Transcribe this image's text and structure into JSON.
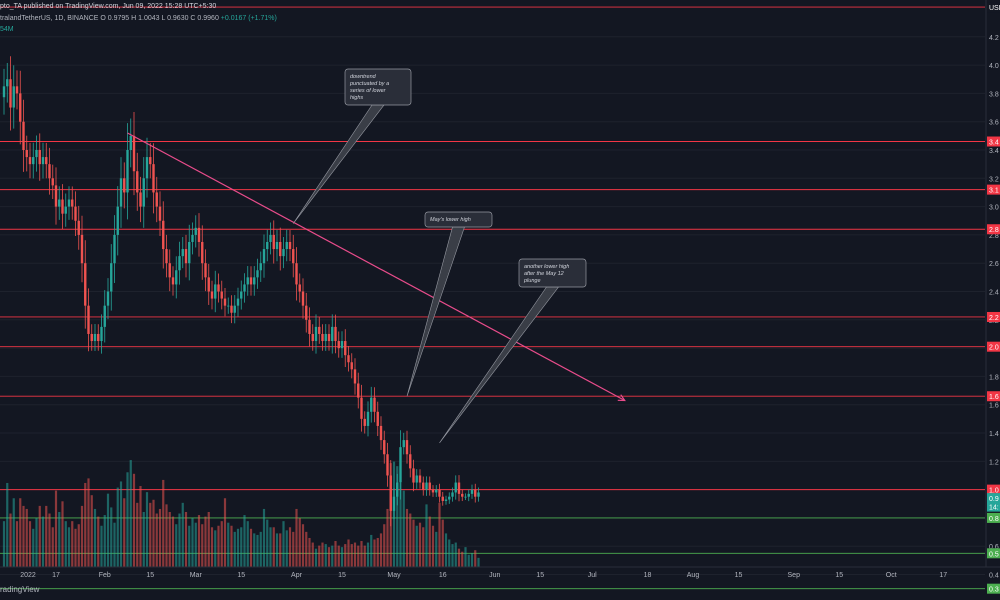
{
  "header": {
    "published": "pto_TA published on TradingView.com, Jun 09, 2022 15:28 UTC+5:30"
  },
  "symbol": {
    "name": "tralandTetherUS, 1D, BINANCE",
    "ohlc": "O 0.9795  H 1.0043  L 0.9630  C 0.9960",
    "change": "+0.0167 (+1.71%)"
  },
  "volume_label": "54M",
  "footer": {
    "brand": "radingView"
  },
  "colors": {
    "background": "#131722",
    "bull": "#26a69a",
    "bear": "#ef5350",
    "trendline": "#e84c8b",
    "resistance": "#f23645",
    "support": "#4caf50",
    "axis_text": "#b2b5be"
  },
  "chart_data": {
    "type": "candlestick",
    "title": "",
    "xlabel": "",
    "ylabel": "",
    "ylim": [
      0.22,
      4.46
    ],
    "x_ticks": [
      "2022",
      "17",
      "Feb",
      "15",
      "Mar",
      "15",
      "Apr",
      "15",
      "May",
      "16",
      "Jun",
      "15",
      "Jul",
      "18",
      "Aug",
      "15",
      "Sep",
      "15",
      "Oct",
      "17"
    ],
    "y_ticks": [
      "4.2",
      "4.0",
      "3.8",
      "3.6",
      "3.4",
      "3.2",
      "3.0",
      "2.8",
      "2.6",
      "2.4",
      "2.2",
      "2.0",
      "1.8",
      "1.6",
      "1.4",
      "1.2",
      "1.0",
      "0.8",
      "0.6",
      "0.4"
    ],
    "price_tags": [
      {
        "label": "USDT",
        "color": "#131722"
      },
      {
        "label": "3.4",
        "color": "#f23645"
      },
      {
        "label": "3.1",
        "color": "#f23645"
      },
      {
        "label": "2.8",
        "color": "#f23645"
      },
      {
        "label": "2.2",
        "color": "#f23645"
      },
      {
        "label": "2.0",
        "color": "#f23645"
      },
      {
        "label": "1.6",
        "color": "#f23645"
      },
      {
        "label": "1.0",
        "color": "#f23645"
      },
      {
        "label": "0.9",
        "color": "#26a69a"
      },
      {
        "label": "14:",
        "color": "#26a69a"
      },
      {
        "label": "0.8",
        "color": "#4caf50"
      },
      {
        "label": "0.5",
        "color": "#4caf50"
      },
      {
        "label": "0.3",
        "color": "#4caf50"
      }
    ],
    "resistance_levels": [
      4.41,
      3.46,
      3.12,
      2.84,
      2.22,
      2.01,
      1.66,
      1.0
    ],
    "support_levels": [
      0.8,
      0.55,
      0.3
    ],
    "trendline": {
      "from": [
        "2022-02-08",
        3.52
      ],
      "to": [
        "2022-07-11",
        1.63
      ]
    },
    "annotations": [
      {
        "text": [
          "downtrend",
          "punctuated by a",
          "series of lower",
          "highs"
        ],
        "arrow_to": [
          "2022-03-31",
          2.88
        ]
      },
      {
        "text": [
          "May's lower high"
        ],
        "arrow_to": [
          "2022-05-05",
          1.66
        ]
      },
      {
        "text": [
          "another lower high",
          "after the May 12",
          "plunge"
        ],
        "arrow_to": [
          "2022-05-15",
          1.33
        ]
      }
    ],
    "start_date": "2022-01-01",
    "closes": [
      3.85,
      3.9,
      3.7,
      3.85,
      3.8,
      3.6,
      3.4,
      3.35,
      3.3,
      3.35,
      3.4,
      3.3,
      3.35,
      3.3,
      3.2,
      3.15,
      3.0,
      3.05,
      2.95,
      3.0,
      3.05,
      3.0,
      2.9,
      2.8,
      2.6,
      2.3,
      2.1,
      2.05,
      2.1,
      2.05,
      2.15,
      2.3,
      2.4,
      2.6,
      2.8,
      3.0,
      3.2,
      3.1,
      3.4,
      3.5,
      3.25,
      3.1,
      3.0,
      3.2,
      3.35,
      3.3,
      3.1,
      3.0,
      2.9,
      2.7,
      2.6,
      2.5,
      2.45,
      2.55,
      2.65,
      2.7,
      2.6,
      2.75,
      2.8,
      2.85,
      2.75,
      2.6,
      2.5,
      2.4,
      2.35,
      2.45,
      2.4,
      2.35,
      2.3,
      2.3,
      2.25,
      2.3,
      2.35,
      2.4,
      2.45,
      2.5,
      2.45,
      2.5,
      2.55,
      2.6,
      2.7,
      2.75,
      2.8,
      2.7,
      2.75,
      2.65,
      2.7,
      2.75,
      2.7,
      2.6,
      2.45,
      2.4,
      2.3,
      2.2,
      2.1,
      2.05,
      2.15,
      2.1,
      2.05,
      2.1,
      2.05,
      2.15,
      2.05,
      2.0,
      2.05,
      1.95,
      1.9,
      1.85,
      1.75,
      1.65,
      1.5,
      1.45,
      1.55,
      1.65,
      1.55,
      1.45,
      1.35,
      1.25,
      1.1,
      0.85,
      0.95,
      1.05,
      1.3,
      1.35,
      1.25,
      1.15,
      1.05,
      1.1,
      1.05,
      1.0,
      1.05,
      1.0,
      0.98,
      1.0,
      0.95,
      0.92,
      0.93,
      0.95,
      0.98,
      1.05,
      0.97,
      0.95,
      0.95,
      0.97,
      1.0,
      0.95,
      0.98
    ],
    "volume": [
      3.0,
      5.5,
      3.5,
      4.5,
      3.0,
      4.5,
      4.0,
      3.8,
      3.0,
      2.5,
      3.2,
      4.0,
      3.3,
      4.0,
      3.5,
      2.6,
      5.0,
      3.6,
      4.3,
      3.0,
      2.6,
      3.0,
      2.5,
      2.8,
      4.0,
      5.5,
      5.8,
      4.7,
      3.8,
      3.3,
      2.7,
      3.4,
      4.8,
      3.9,
      2.9,
      5.2,
      5.6,
      4.5,
      6.2,
      7.0,
      6.1,
      4.2,
      5.3,
      3.6,
      4.9,
      4.2,
      4.4,
      3.5,
      3.8,
      5.7,
      4.1,
      3.6,
      3.3,
      2.8,
      3.5,
      4.2,
      3.6,
      2.7,
      3.2,
      2.9,
      3.4,
      2.8,
      3.3,
      3.6,
      2.6,
      2.4,
      2.7,
      3.0,
      4.5,
      2.9,
      2.7,
      2.3,
      2.5,
      2.6,
      3.4,
      3.0,
      2.5,
      2.2,
      2.1,
      2.3,
      3.8,
      3.1,
      2.6,
      2.6,
      2.2,
      2.2,
      3.0,
      2.4,
      2.6,
      2.3,
      3.8,
      3.2,
      2.8,
      2.3,
      1.9,
      1.6,
      1.2,
      1.4,
      1.6,
      1.5,
      1.3,
      1.4,
      1.7,
      1.4,
      1.3,
      1.5,
      1.8,
      1.5,
      1.6,
      1.4,
      1.7,
      1.4,
      1.6,
      2.1,
      1.8,
      1.9,
      2.2,
      2.8,
      3.8,
      6.8,
      6.9,
      6.6,
      5.5,
      5.0,
      3.8,
      3.5,
      3.1,
      2.7,
      2.9,
      2.6,
      4.1,
      3.3,
      2.7,
      2.3,
      4.2,
      3.1,
      2.2,
      1.8,
      1.5,
      1.6,
      1.2,
      1.0,
      1.3,
      0.8,
      0.9,
      1.1,
      0.6
    ]
  }
}
